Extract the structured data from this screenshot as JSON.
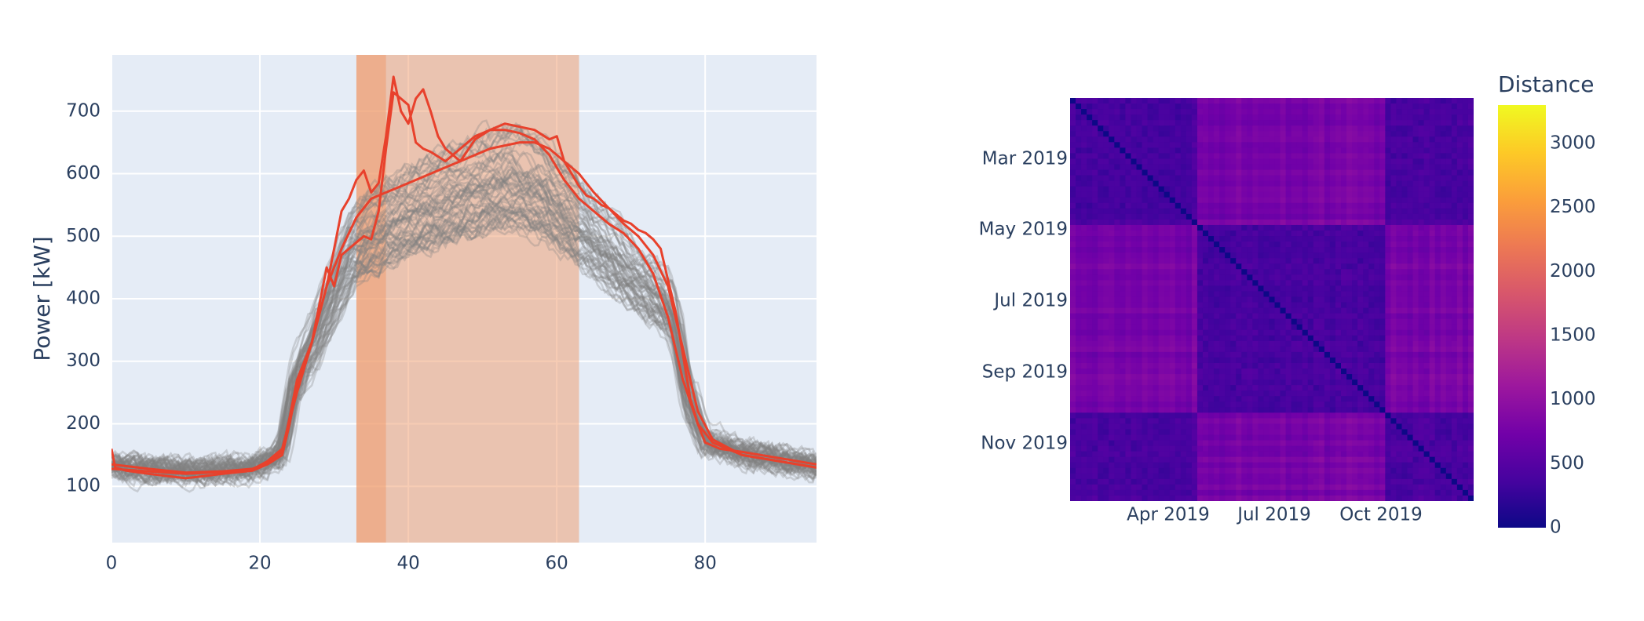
{
  "chart_data": [
    {
      "type": "line",
      "title": "",
      "xlabel": "",
      "ylabel": "Power [kW]",
      "xlim": [
        0,
        95
      ],
      "ylim": [
        10,
        790
      ],
      "x_ticks": [
        "0",
        "20",
        "40",
        "60",
        "80"
      ],
      "y_ticks": [
        "100",
        "200",
        "300",
        "400",
        "500",
        "600",
        "700"
      ],
      "grid": true,
      "legend": "none",
      "highlight_regions": [
        {
          "x": [
            33,
            37
          ],
          "color": "#ef9a6a",
          "opacity": 0.75
        },
        {
          "x": [
            37,
            63
          ],
          "color": "#ef9a6a",
          "opacity": 0.5
        }
      ],
      "background_series": {
        "color": "#808080",
        "count": 60,
        "typical_profile": {
          "x": [
            0,
            5,
            10,
            15,
            19,
            21,
            23,
            24,
            25,
            27,
            29,
            31,
            33,
            35,
            37,
            40,
            45,
            50,
            54,
            58,
            62,
            66,
            70,
            73,
            75,
            76,
            77,
            78,
            80,
            85,
            90,
            95
          ],
          "y": [
            130,
            125,
            122,
            122,
            125,
            135,
            150,
            210,
            280,
            330,
            390,
            450,
            500,
            515,
            530,
            550,
            570,
            595,
            605,
            585,
            545,
            500,
            450,
            420,
            400,
            370,
            300,
            230,
            170,
            150,
            140,
            130
          ]
        }
      },
      "series": [
        {
          "color": "#e8412c",
          "x": [
            0,
            0.5,
            2,
            5,
            10,
            15,
            19,
            21,
            23,
            24,
            25,
            27,
            29,
            30,
            31,
            32,
            33,
            34,
            35,
            36,
            37,
            38,
            39,
            40,
            41,
            42,
            43,
            44,
            45,
            47,
            49,
            51,
            53,
            55,
            57,
            59,
            60,
            61,
            62,
            63,
            64,
            65,
            66,
            67,
            68,
            69,
            70,
            71,
            72,
            73,
            74,
            75,
            76,
            77,
            78,
            79,
            80,
            82,
            85,
            90,
            95
          ],
          "y": [
            160,
            130,
            125,
            120,
            113,
            120,
            125,
            135,
            150,
            200,
            260,
            330,
            420,
            480,
            540,
            560,
            590,
            605,
            570,
            585,
            660,
            755,
            700,
            680,
            720,
            735,
            700,
            660,
            640,
            620,
            655,
            670,
            680,
            675,
            670,
            655,
            660,
            620,
            600,
            580,
            565,
            560,
            550,
            545,
            535,
            525,
            520,
            510,
            505,
            495,
            480,
            430,
            380,
            310,
            240,
            200,
            170,
            160,
            155,
            145,
            135
          ]
        },
        {
          "color": "#e8412c",
          "x": [
            0,
            5,
            10,
            15,
            19,
            21,
            23,
            24,
            25,
            27,
            28,
            29,
            30,
            31,
            32,
            33,
            34,
            35,
            36,
            37,
            38,
            39,
            40,
            41,
            42,
            43,
            45,
            47,
            49,
            51,
            53,
            55,
            57,
            59,
            61,
            62,
            63,
            65,
            67,
            69,
            71,
            73,
            75,
            77,
            79,
            81,
            85,
            90,
            95
          ],
          "y": [
            135,
            128,
            122,
            124,
            128,
            138,
            155,
            210,
            270,
            330,
            390,
            450,
            420,
            470,
            480,
            490,
            500,
            495,
            540,
            640,
            730,
            720,
            710,
            650,
            640,
            635,
            620,
            640,
            660,
            670,
            670,
            665,
            655,
            630,
            590,
            575,
            560,
            540,
            520,
            505,
            480,
            440,
            370,
            270,
            200,
            170,
            150,
            140,
            130
          ]
        },
        {
          "color": "#e8412c",
          "x": [
            0,
            5,
            10,
            15,
            19,
            21,
            23,
            25,
            27,
            29,
            31,
            33,
            35,
            37,
            39,
            41,
            43,
            45,
            47,
            49,
            51,
            53,
            55,
            57,
            59,
            61,
            63,
            65,
            67,
            69,
            71,
            73,
            75,
            77,
            79,
            81,
            85,
            90,
            95
          ],
          "y": [
            128,
            124,
            120,
            123,
            127,
            140,
            160,
            250,
            330,
            420,
            480,
            530,
            560,
            570,
            580,
            590,
            600,
            610,
            620,
            630,
            640,
            645,
            650,
            650,
            640,
            620,
            600,
            570,
            545,
            520,
            500,
            470,
            420,
            320,
            220,
            175,
            150,
            140,
            130
          ]
        }
      ]
    },
    {
      "type": "heatmap",
      "title": "",
      "x_ticks": [
        "Apr 2019",
        "Jul 2019",
        "Oct 2019"
      ],
      "y_ticks": [
        "Mar 2019",
        "May 2019",
        "Jul 2019",
        "Sep 2019",
        "Nov 2019"
      ],
      "colorbar": {
        "title": "Distance",
        "min": 0,
        "max": 3300,
        "ticks": [
          "0",
          "500",
          "1000",
          "1500",
          "2000",
          "2500",
          "3000"
        ],
        "colorscale": [
          "#0d0887",
          "#46039f",
          "#7201a8",
          "#9c179e",
          "#bd3786",
          "#d8576b",
          "#ed7953",
          "#fb9f3a",
          "#fdca26",
          "#f0f921"
        ]
      },
      "matrix_description_values": {
        "diagonal": 0,
        "typical_low": 250,
        "typical_high": 900
      }
    }
  ]
}
